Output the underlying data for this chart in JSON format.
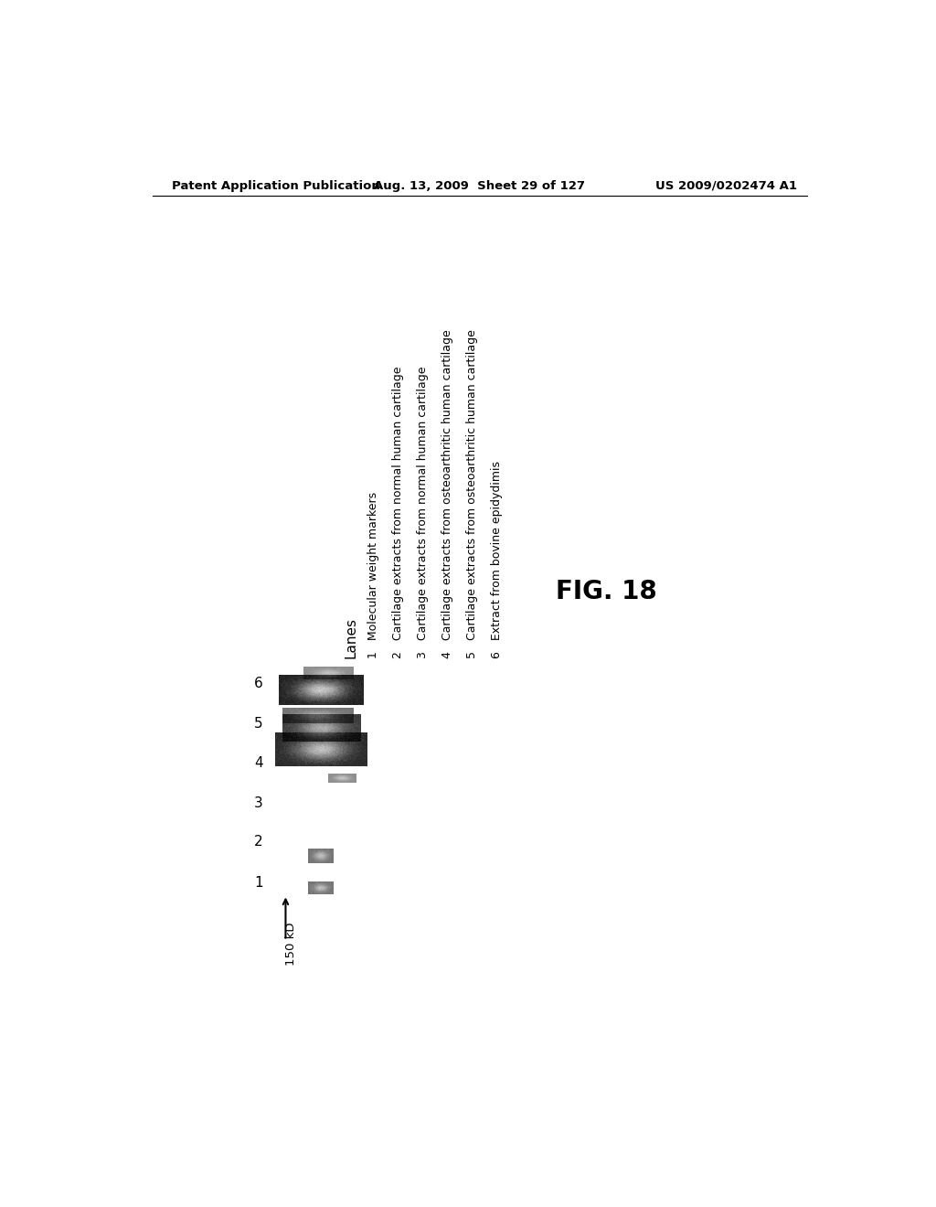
{
  "header_left": "Patent Application Publication",
  "header_center": "Aug. 13, 2009  Sheet 29 of 127",
  "header_right": "US 2009/0202474 A1",
  "fig_label": "FIG. 18",
  "lanes_title": "Lanes",
  "lane_entries": [
    "1   Molecular weight markers",
    "2   Cartilage extracts from normal human cartilage",
    "3   Cartilage extracts from normal human cartilage",
    "4   Cartilage extracts from osteoarthritic human cartilage",
    "5   Cartilage extracts from osteoarthritic human cartilage",
    "6   Extract from bovine epidydimis"
  ],
  "marker_label": "150 kD",
  "background_color": "#ffffff",
  "text_color": "#000000",
  "header_fontsize": 9.5,
  "body_fontsize": 10,
  "fig_label_fontsize": 20,
  "lane_numbers": [
    "1",
    "2",
    "3",
    "4",
    "5",
    "6"
  ]
}
